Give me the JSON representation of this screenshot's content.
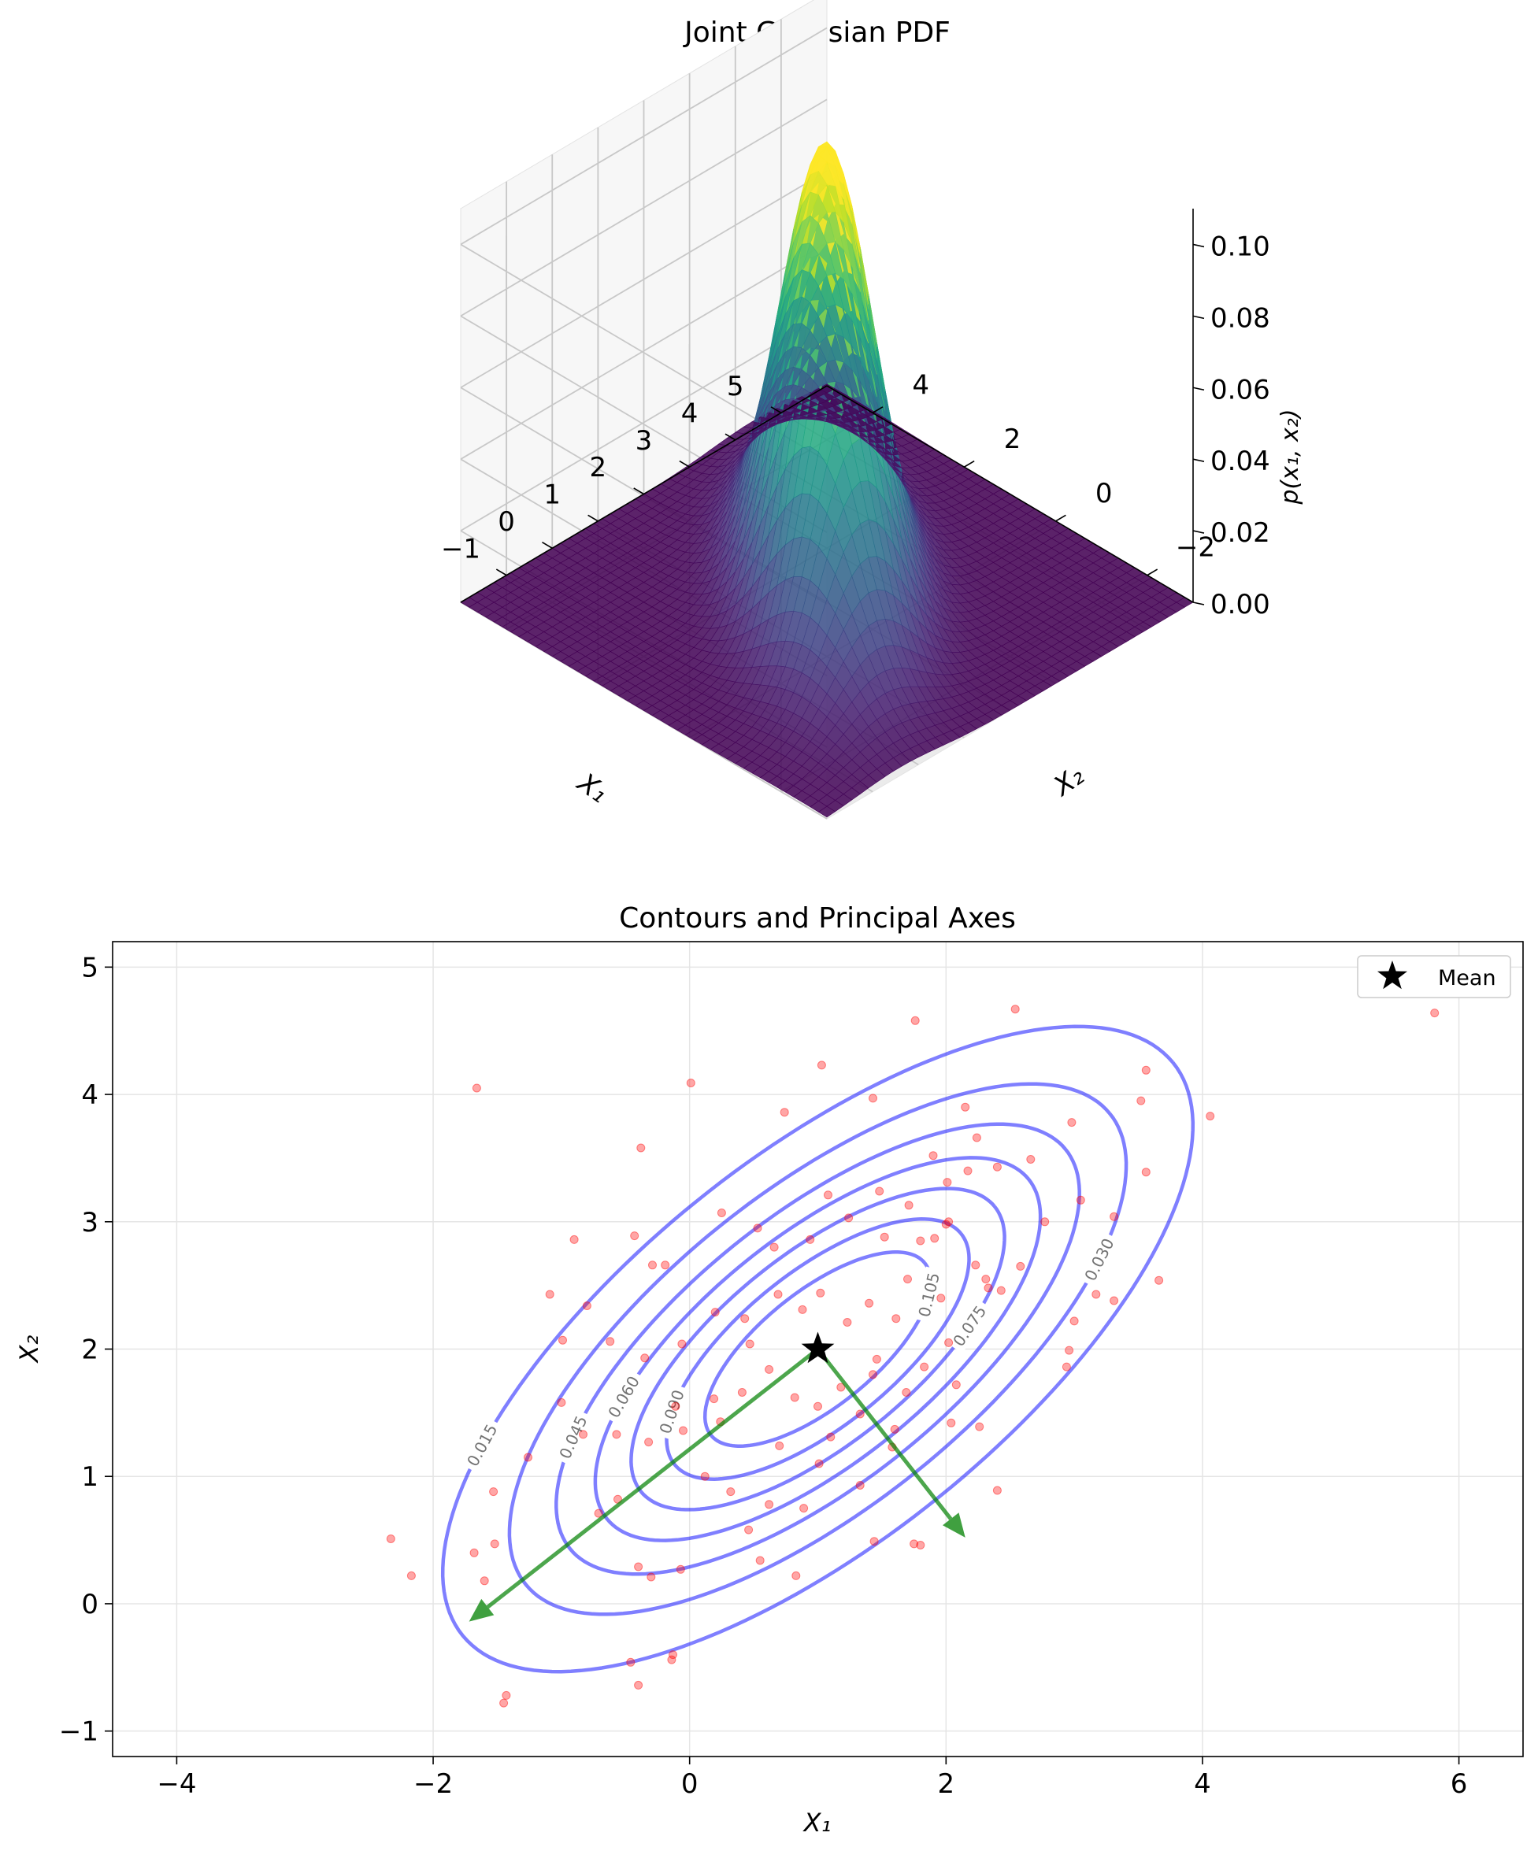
{
  "chart_data": [
    {
      "type": "surface3d",
      "title": "Joint Gaussian PDF",
      "xlabel": "X₁",
      "ylabel": "X₂",
      "zlabel": "p(x₁, x₂)",
      "xlim": [
        -3.0,
        5.0
      ],
      "ylim": [
        -2.0,
        6.0
      ],
      "zlim": [
        0,
        0.11
      ],
      "x_ticks": [
        "−2",
        "0",
        "2",
        "4"
      ],
      "y_ticks": [
        "−1",
        "0",
        "1",
        "2",
        "3",
        "4",
        "5"
      ],
      "z_ticks": [
        "0.00",
        "0.02",
        "0.04",
        "0.06",
        "0.08",
        "0.10"
      ],
      "mean": [
        1.0,
        2.0
      ],
      "covariance": [
        [
          2.0,
          1.2
        ],
        [
          1.2,
          1.5
        ]
      ],
      "peak": 0.111,
      "colormap": "viridis",
      "grid": true
    },
    {
      "type": "contour",
      "title": "Contours and Principal Axes",
      "xlabel": "X₁",
      "ylabel": "X₂",
      "xlim": [
        -4.5,
        6.5
      ],
      "ylim": [
        -1.2,
        5.2
      ],
      "x_ticks": [
        "−4",
        "−2",
        "0",
        "2",
        "4",
        "6"
      ],
      "y_ticks": [
        "−1",
        "0",
        "1",
        "2",
        "3",
        "4",
        "5"
      ],
      "grid": true,
      "legend": {
        "placement": "top-right",
        "entries": [
          {
            "label": "Mean",
            "marker": "star"
          }
        ]
      },
      "mean": [
        1.0,
        2.0
      ],
      "contour_levels": [
        0.015,
        0.03,
        0.045,
        0.06,
        0.075,
        0.09,
        0.105
      ],
      "contour_label_texts": [
        "0.015",
        "0.030",
        "0.045",
        "0.060",
        "0.075",
        "0.090",
        "0.105"
      ],
      "principal_axes": [
        {
          "from": [
            1.0,
            2.0
          ],
          "to": [
            -1.72,
            -0.14
          ]
        },
        {
          "from": [
            1.0,
            2.0
          ],
          "to": [
            2.15,
            0.52
          ]
        }
      ],
      "samples": [
        [
          -1.66,
          4.05
        ],
        [
          0.01,
          4.09
        ],
        [
          1.03,
          4.23
        ],
        [
          1.76,
          4.58
        ],
        [
          2.54,
          4.67
        ],
        [
          5.81,
          4.64
        ],
        [
          -0.38,
          3.58
        ],
        [
          0.74,
          3.86
        ],
        [
          1.43,
          3.97
        ],
        [
          2.15,
          3.9
        ],
        [
          2.24,
          3.66
        ],
        [
          3.56,
          4.19
        ],
        [
          4.06,
          3.83
        ],
        [
          3.52,
          3.95
        ],
        [
          2.98,
          3.78
        ],
        [
          2.66,
          3.49
        ],
        [
          2.4,
          3.43
        ],
        [
          2.01,
          3.31
        ],
        [
          1.9,
          3.52
        ],
        [
          2.17,
          3.4
        ],
        [
          3.31,
          3.04
        ],
        [
          3.56,
          3.39
        ],
        [
          3.05,
          3.17
        ],
        [
          2.77,
          3.0
        ],
        [
          -0.9,
          2.86
        ],
        [
          -0.43,
          2.89
        ],
        [
          -0.19,
          2.66
        ],
        [
          -0.29,
          2.66
        ],
        [
          0.25,
          3.07
        ],
        [
          0.53,
          2.95
        ],
        [
          0.66,
          2.8
        ],
        [
          0.94,
          2.86
        ],
        [
          1.08,
          3.21
        ],
        [
          1.24,
          3.03
        ],
        [
          1.48,
          3.24
        ],
        [
          1.52,
          2.88
        ],
        [
          1.71,
          3.13
        ],
        [
          1.8,
          2.85
        ],
        [
          1.91,
          2.87
        ],
        [
          2.0,
          2.98
        ],
        [
          2.02,
          3.0
        ],
        [
          2.23,
          2.66
        ],
        [
          2.31,
          2.55
        ],
        [
          2.33,
          2.48
        ],
        [
          2.43,
          2.46
        ],
        [
          2.58,
          2.65
        ],
        [
          3.0,
          2.22
        ],
        [
          3.17,
          2.43
        ],
        [
          3.31,
          2.38
        ],
        [
          3.66,
          2.54
        ],
        [
          2.96,
          1.99
        ],
        [
          2.94,
          1.86
        ],
        [
          -1.09,
          2.43
        ],
        [
          -0.99,
          2.07
        ],
        [
          -0.8,
          2.34
        ],
        [
          -0.62,
          2.06
        ],
        [
          -0.35,
          1.93
        ],
        [
          -0.06,
          2.04
        ],
        [
          0.2,
          2.29
        ],
        [
          0.43,
          2.24
        ],
        [
          0.69,
          2.43
        ],
        [
          0.88,
          2.31
        ],
        [
          1.02,
          2.44
        ],
        [
          1.23,
          2.21
        ],
        [
          1.4,
          2.36
        ],
        [
          1.61,
          2.24
        ],
        [
          1.7,
          2.55
        ],
        [
          1.96,
          2.4
        ],
        [
          2.02,
          2.05
        ],
        [
          2.08,
          1.72
        ],
        [
          1.69,
          1.66
        ],
        [
          1.43,
          1.8
        ],
        [
          1.18,
          1.7
        ],
        [
          1.0,
          1.55
        ],
        [
          0.82,
          1.62
        ],
        [
          0.62,
          1.84
        ],
        [
          0.41,
          1.66
        ],
        [
          0.24,
          1.43
        ],
        [
          -0.05,
          1.36
        ],
        [
          -0.32,
          1.27
        ],
        [
          -0.57,
          1.33
        ],
        [
          -0.83,
          1.33
        ],
        [
          -1.0,
          1.58
        ],
        [
          -1.26,
          1.15
        ],
        [
          -1.53,
          0.88
        ],
        [
          -1.52,
          0.47
        ],
        [
          -1.68,
          0.4
        ],
        [
          -1.6,
          0.18
        ],
        [
          -2.17,
          0.22
        ],
        [
          -2.33,
          0.51
        ],
        [
          -0.71,
          0.71
        ],
        [
          -0.56,
          0.82
        ],
        [
          -0.4,
          0.29
        ],
        [
          -0.3,
          0.21
        ],
        [
          -0.07,
          0.27
        ],
        [
          0.12,
          1.0
        ],
        [
          0.32,
          0.88
        ],
        [
          0.46,
          0.58
        ],
        [
          0.62,
          0.78
        ],
        [
          0.89,
          0.75
        ],
        [
          1.01,
          1.1
        ],
        [
          1.33,
          0.93
        ],
        [
          1.58,
          1.23
        ],
        [
          1.75,
          0.47
        ],
        [
          1.8,
          0.46
        ],
        [
          2.04,
          1.42
        ],
        [
          2.26,
          1.39
        ],
        [
          2.4,
          0.89
        ],
        [
          1.44,
          0.49
        ],
        [
          0.83,
          0.22
        ],
        [
          -0.46,
          -0.46
        ],
        [
          -0.4,
          -0.64
        ],
        [
          -0.13,
          -0.4
        ],
        [
          -0.14,
          -0.44
        ],
        [
          -1.45,
          -0.78
        ],
        [
          -1.43,
          -0.72
        ],
        [
          0.55,
          0.34
        ],
        [
          0.7,
          1.24
        ],
        [
          1.1,
          1.31
        ],
        [
          1.33,
          1.49
        ],
        [
          1.6,
          1.37
        ],
        [
          0.19,
          1.61
        ],
        [
          -0.11,
          1.55
        ],
        [
          0.47,
          2.04
        ],
        [
          1.46,
          1.92
        ],
        [
          1.83,
          1.86
        ]
      ]
    }
  ]
}
